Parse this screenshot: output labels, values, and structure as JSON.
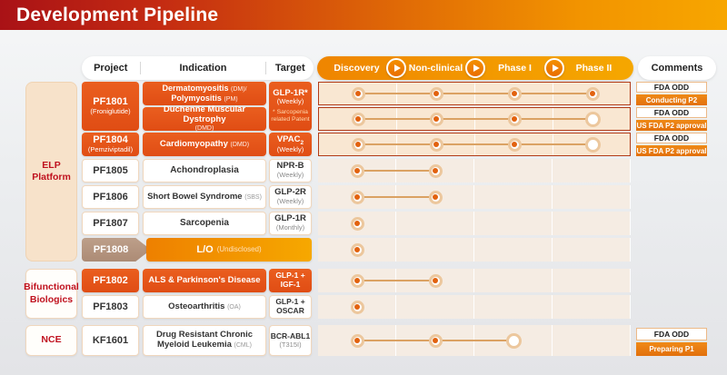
{
  "title": "Development Pipeline",
  "columns": {
    "project": "Project",
    "indication": "Indication",
    "target": "Target",
    "comments": "Comments"
  },
  "phases": [
    "Discovery",
    "Non-clinical",
    "Phase I",
    "Phase II"
  ],
  "groups": {
    "elp": "ELP Platform",
    "bifunctional": "Bifunctional Biologics",
    "nce": "NCE"
  },
  "rows": {
    "pf1801": {
      "code": "PF1801",
      "name": "(Froniglutide)",
      "indA_main": "Dermatomyositis",
      "indA_tag": "(DM)/",
      "indA_main2": "Polymyositis",
      "indA_tag2": "(PM)",
      "indB_main": "Duchenne Muscular Dystrophy",
      "indB_tag": "(DMD)",
      "target": "GLP-1R*",
      "target_freq": "(Weekly)",
      "target_note": "* Sarcopenia related Patent",
      "dotsA": [
        "filled",
        "filled",
        "filled",
        "filled"
      ],
      "dotsB": [
        "filled",
        "filled",
        "filled",
        "open"
      ],
      "commentsA": [
        "FDA ODD",
        "Conducting P2"
      ],
      "commentsB": [
        "FDA ODD",
        "US FDA P2 approval"
      ]
    },
    "pf1804": {
      "code": "PF1804",
      "name": "(Pemziviptadil)",
      "ind_main": "Cardiomyopathy",
      "ind_tag": "(DMD)",
      "target": "VPAC",
      "target_sub": "2",
      "target_freq": "(Weekly)",
      "dots": [
        "filled",
        "filled",
        "filled",
        "open"
      ],
      "comments": [
        "FDA ODD",
        "US FDA P2 approval"
      ]
    },
    "pf1805": {
      "code": "PF1805",
      "ind_main": "Achondroplasia",
      "target": "NPR-B",
      "target_freq": "(Weekly)",
      "dots": [
        "filled",
        "filled",
        "none",
        "none"
      ]
    },
    "pf1806": {
      "code": "PF1806",
      "ind_main": "Short Bowel Syndrome",
      "ind_tag": "(SBS)",
      "target": "GLP-2R",
      "target_freq": "(Weekly)",
      "dots": [
        "filled",
        "filled",
        "none",
        "none"
      ]
    },
    "pf1807": {
      "code": "PF1807",
      "ind_main": "Sarcopenia",
      "target": "GLP-1R",
      "target_freq": "(Monthly)",
      "dots": [
        "filled",
        "none",
        "none",
        "none"
      ]
    },
    "pf1808": {
      "code": "PF1808",
      "lo_main": "L/O",
      "lo_tag": "(Undisclosed)",
      "dots": [
        "filled",
        "none",
        "none",
        "none"
      ]
    },
    "pf1802": {
      "code": "PF1802",
      "ind_main": "ALS & Parkinson's Disease",
      "target_l1": "GLP-1 +",
      "target_l2": "IGF-1",
      "dots": [
        "filled",
        "filled",
        "none",
        "none"
      ]
    },
    "pf1803": {
      "code": "PF1803",
      "ind_main": "Osteoarthritis",
      "ind_tag": "(OA)",
      "target_l1": "GLP-1 +",
      "target_l2": "OSCAR",
      "dots": [
        "filled",
        "none",
        "none",
        "none"
      ]
    },
    "kf1601": {
      "code": "KF1601",
      "ind_main": "Drug Resistant Chronic Myeloid Leukemia",
      "ind_tag": "(CML)",
      "target": "BCR-ABL1",
      "target_freq": "(T315I)",
      "dots": [
        "filled",
        "filled",
        "open",
        "none"
      ],
      "comments": [
        "FDA ODD",
        "Preparing P1"
      ]
    }
  },
  "colors": {
    "banner_left": "#a91216",
    "banner_right": "#f7a600",
    "box_orange": "#e4521a",
    "phase_bar": "#f39200",
    "highlight_border": "#b23b17",
    "dot_fill": "#e2620f",
    "comment_orange": "#e87d15",
    "group_text": "#c0121f",
    "chevron_tan": "#b49580"
  }
}
